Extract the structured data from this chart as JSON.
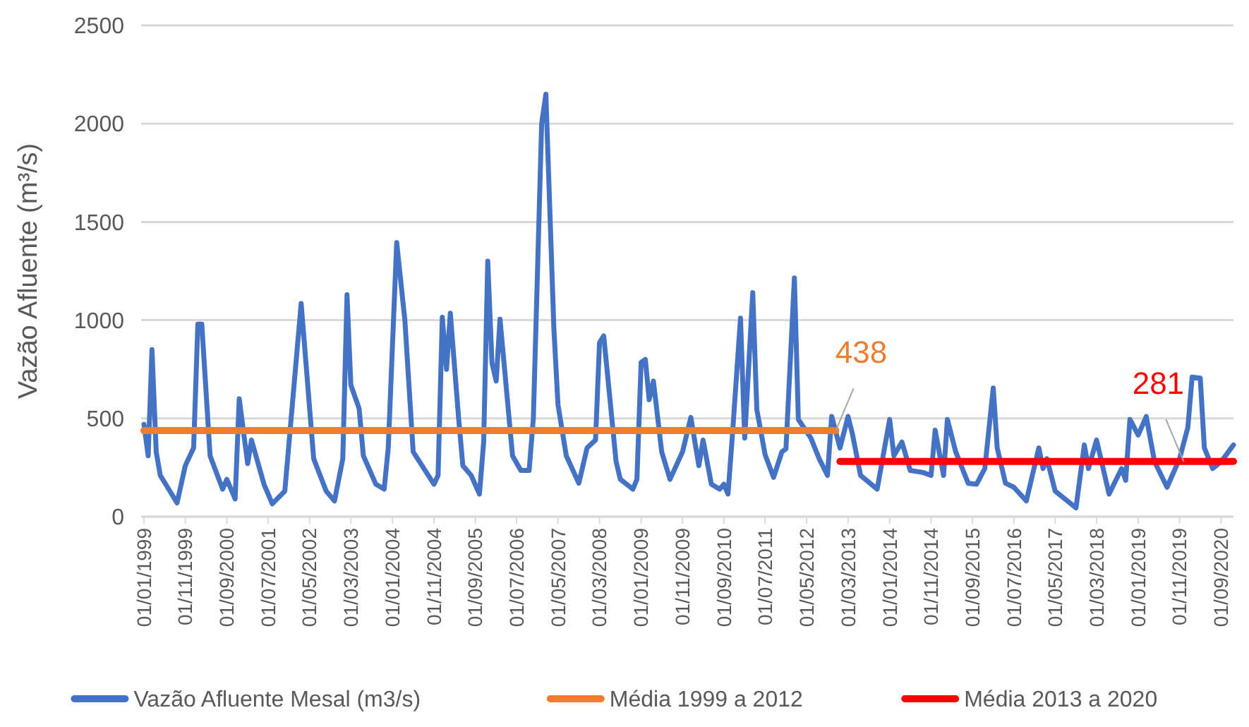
{
  "chart_data": {
    "type": "line",
    "ylabel": "Vazão Afluente (m³/s)",
    "xlim": [
      "1999-01",
      "2020-12"
    ],
    "ylim": [
      0,
      2500
    ],
    "yticks": [
      0,
      500,
      1000,
      1500,
      2000,
      2500
    ],
    "xticks": [
      {
        "value": "1999-01",
        "label": "01/01/1999"
      },
      {
        "value": "1999-11",
        "label": "01/11/1999"
      },
      {
        "value": "2000-09",
        "label": "01/09/2000"
      },
      {
        "value": "2001-07",
        "label": "01/07/2001"
      },
      {
        "value": "2002-05",
        "label": "01/05/2002"
      },
      {
        "value": "2003-03",
        "label": "01/03/2003"
      },
      {
        "value": "2004-01",
        "label": "01/01/2004"
      },
      {
        "value": "2004-11",
        "label": "01/11/2004"
      },
      {
        "value": "2005-09",
        "label": "01/09/2005"
      },
      {
        "value": "2006-07",
        "label": "01/07/2006"
      },
      {
        "value": "2007-05",
        "label": "01/05/2007"
      },
      {
        "value": "2008-03",
        "label": "01/03/2008"
      },
      {
        "value": "2009-01",
        "label": "01/01/2009"
      },
      {
        "value": "2009-11",
        "label": "01/11/2009"
      },
      {
        "value": "2010-09",
        "label": "01/09/2010"
      },
      {
        "value": "2011-07",
        "label": "01/07/2011"
      },
      {
        "value": "2012-05",
        "label": "01/05/2012"
      },
      {
        "value": "2013-03",
        "label": "01/03/2013"
      },
      {
        "value": "2014-01",
        "label": "01/01/2014"
      },
      {
        "value": "2014-11",
        "label": "01/11/2014"
      },
      {
        "value": "2015-09",
        "label": "01/09/2015"
      },
      {
        "value": "2016-07",
        "label": "01/07/2016"
      },
      {
        "value": "2017-05",
        "label": "01/05/2017"
      },
      {
        "value": "2018-03",
        "label": "01/03/2018"
      },
      {
        "value": "2019-01",
        "label": "01/01/2019"
      },
      {
        "value": "2019-11",
        "label": "01/11/2019"
      },
      {
        "value": "2020-09",
        "label": "01/09/2020"
      }
    ],
    "grid": "y",
    "legend": "bottom",
    "marker": "none",
    "line_style": "solid",
    "series": [
      {
        "name": "Vazão Afluente Mesal (m3/s)",
        "color": "#4472c4",
        "x": [
          "1999-01",
          "1999-02",
          "1999-03",
          "1999-04",
          "1999-05",
          "1999-09",
          "1999-11",
          "2000-01",
          "2000-02",
          "2000-03",
          "2000-05",
          "2000-08",
          "2000-09",
          "2000-11",
          "2000-12",
          "2001-02",
          "2001-03",
          "2001-06",
          "2001-08",
          "2001-11",
          "2002-03",
          "2002-06",
          "2002-09",
          "2002-11",
          "2003-01",
          "2003-02",
          "2003-03",
          "2003-05",
          "2003-06",
          "2003-09",
          "2003-11",
          "2003-12",
          "2004-02",
          "2004-04",
          "2004-06",
          "2004-11",
          "2004-12",
          "2005-01",
          "2005-02",
          "2005-03",
          "2005-05",
          "2005-06",
          "2005-08",
          "2005-10",
          "2005-11",
          "2005-12",
          "2006-01",
          "2006-02",
          "2006-03",
          "2006-06",
          "2006-08",
          "2006-10",
          "2006-11",
          "2007-01",
          "2007-02",
          "2007-04",
          "2007-05",
          "2007-07",
          "2007-10",
          "2007-12",
          "2008-02",
          "2008-03",
          "2008-04",
          "2008-07",
          "2008-08",
          "2008-11",
          "2008-12",
          "2009-01",
          "2009-02",
          "2009-03",
          "2009-04",
          "2009-06",
          "2009-08",
          "2009-11",
          "2010-01",
          "2010-03",
          "2010-04",
          "2010-06",
          "2010-08",
          "2010-09",
          "2010-10",
          "2010-11",
          "2011-01",
          "2011-02",
          "2011-04",
          "2011-05",
          "2011-07",
          "2011-09",
          "2011-11",
          "2011-12",
          "2012-02",
          "2012-03",
          "2012-06",
          "2012-08",
          "2012-10",
          "2012-11",
          "2013-01",
          "2013-03",
          "2013-04",
          "2013-06",
          "2013-10",
          "2014-01",
          "2014-02",
          "2014-04",
          "2014-06",
          "2014-09",
          "2014-11",
          "2014-12",
          "2015-02",
          "2015-03",
          "2015-05",
          "2015-08",
          "2015-10",
          "2015-12",
          "2016-02",
          "2016-03",
          "2016-05",
          "2016-07",
          "2016-10",
          "2017-01",
          "2017-02",
          "2017-03",
          "2017-05",
          "2017-10",
          "2017-12",
          "2018-01",
          "2018-03",
          "2018-06",
          "2018-09",
          "2018-10",
          "2018-11",
          "2019-01",
          "2019-03",
          "2019-05",
          "2019-08",
          "2019-11",
          "2020-01",
          "2020-02",
          "2020-04",
          "2020-05",
          "2020-07",
          "2020-09",
          "2020-12"
        ],
        "values": [
          470,
          310,
          850,
          330,
          210,
          70,
          260,
          350,
          980,
          980,
          310,
          140,
          190,
          90,
          600,
          270,
          390,
          165,
          65,
          130,
          1085,
          295,
          130,
          80,
          295,
          1130,
          670,
          550,
          310,
          165,
          140,
          350,
          1395,
          1000,
          330,
          165,
          210,
          1015,
          750,
          1035,
          500,
          260,
          210,
          115,
          380,
          1300,
          783,
          690,
          1005,
          310,
          235,
          235,
          500,
          2000,
          2150,
          955,
          570,
          310,
          170,
          350,
          390,
          885,
          920,
          280,
          190,
          140,
          190,
          785,
          800,
          595,
          690,
          330,
          190,
          330,
          505,
          260,
          390,
          165,
          140,
          165,
          115,
          400,
          1010,
          400,
          1140,
          545,
          315,
          200,
          330,
          345,
          1215,
          495,
          400,
          295,
          210,
          510,
          350,
          510,
          425,
          210,
          140,
          495,
          310,
          380,
          235,
          225,
          210,
          440,
          210,
          495,
          330,
          170,
          165,
          245,
          655,
          350,
          170,
          150,
          80,
          350,
          245,
          295,
          130,
          45,
          365,
          245,
          390,
          115,
          245,
          185,
          495,
          415,
          510,
          280,
          150,
          295,
          455,
          710,
          705,
          350,
          245,
          280,
          365
        ]
      },
      {
        "name": "Média 1999 a 2012",
        "color": "#ed7d31",
        "x": [
          "1999-01",
          "2012-12"
        ],
        "values": [
          438,
          438
        ]
      },
      {
        "name": "Média 2013 a 2020",
        "color": "#ff0000",
        "x": [
          "2013-01",
          "2020-12"
        ],
        "values": [
          281,
          281
        ]
      }
    ],
    "annotations": [
      {
        "text": "438",
        "x": "2012-12",
        "y": 438
      },
      {
        "text": "281",
        "x": "2019-12",
        "y": 281
      }
    ]
  }
}
